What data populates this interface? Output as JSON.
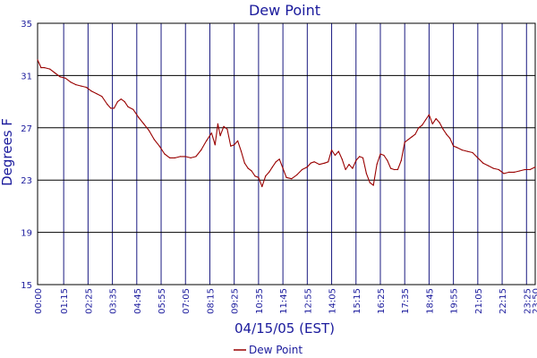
{
  "chart_data": {
    "type": "line",
    "title": "Dew Point",
    "xlabel": "04/15/05 (EST)",
    "ylabel": "Degrees F",
    "ylim": [
      15,
      35
    ],
    "yticks": [
      15,
      19,
      23,
      27,
      31,
      35
    ],
    "x_range": [
      "00:00",
      "23:50"
    ],
    "xticks": [
      "00:00",
      "01:15",
      "02:25",
      "03:35",
      "04:45",
      "05:55",
      "07:05",
      "08:15",
      "09:25",
      "10:35",
      "11:45",
      "12:55",
      "14:05",
      "15:15",
      "16:25",
      "17:35",
      "18:45",
      "19:55",
      "21:05",
      "22:15",
      "23:25",
      "23:50"
    ],
    "grid": true,
    "legend_position": "bottom",
    "colors": {
      "series": "#990000",
      "grid": "#1a1a80",
      "axis_text": "#1a1a9c",
      "horizontal_grid": "#000000"
    },
    "series": [
      {
        "name": "Dew Point",
        "points": [
          [
            "00:00",
            32.2
          ],
          [
            "00:10",
            31.6
          ],
          [
            "00:20",
            31.6
          ],
          [
            "00:35",
            31.5
          ],
          [
            "00:50",
            31.2
          ],
          [
            "01:05",
            30.9
          ],
          [
            "01:20",
            30.8
          ],
          [
            "01:35",
            30.5
          ],
          [
            "01:50",
            30.3
          ],
          [
            "02:05",
            30.2
          ],
          [
            "02:20",
            30.1
          ],
          [
            "02:35",
            29.8
          ],
          [
            "02:50",
            29.6
          ],
          [
            "03:05",
            29.4
          ],
          [
            "03:20",
            28.8
          ],
          [
            "03:30",
            28.5
          ],
          [
            "03:40",
            28.5
          ],
          [
            "03:50",
            29.0
          ],
          [
            "04:00",
            29.2
          ],
          [
            "04:10",
            29.0
          ],
          [
            "04:20",
            28.6
          ],
          [
            "04:35",
            28.4
          ],
          [
            "04:50",
            27.8
          ],
          [
            "05:05",
            27.3
          ],
          [
            "05:20",
            26.8
          ],
          [
            "05:35",
            26.1
          ],
          [
            "05:50",
            25.6
          ],
          [
            "06:05",
            25.0
          ],
          [
            "06:20",
            24.7
          ],
          [
            "06:35",
            24.7
          ],
          [
            "06:50",
            24.8
          ],
          [
            "07:05",
            24.8
          ],
          [
            "07:20",
            24.7
          ],
          [
            "07:35",
            24.8
          ],
          [
            "07:50",
            25.3
          ],
          [
            "08:05",
            26.0
          ],
          [
            "08:20",
            26.6
          ],
          [
            "08:30",
            25.7
          ],
          [
            "08:38",
            27.3
          ],
          [
            "08:45",
            26.4
          ],
          [
            "08:55",
            27.1
          ],
          [
            "09:05",
            26.9
          ],
          [
            "09:15",
            25.6
          ],
          [
            "09:25",
            25.7
          ],
          [
            "09:35",
            26.0
          ],
          [
            "09:45",
            25.2
          ],
          [
            "09:55",
            24.3
          ],
          [
            "10:05",
            23.9
          ],
          [
            "10:15",
            23.7
          ],
          [
            "10:25",
            23.3
          ],
          [
            "10:35",
            23.2
          ],
          [
            "10:45",
            22.5
          ],
          [
            "10:55",
            23.3
          ],
          [
            "11:05",
            23.6
          ],
          [
            "11:15",
            24.0
          ],
          [
            "11:25",
            24.4
          ],
          [
            "11:35",
            24.6
          ],
          [
            "11:45",
            23.9
          ],
          [
            "11:55",
            23.2
          ],
          [
            "12:10",
            23.1
          ],
          [
            "12:25",
            23.4
          ],
          [
            "12:40",
            23.8
          ],
          [
            "12:55",
            24.0
          ],
          [
            "13:05",
            24.3
          ],
          [
            "13:15",
            24.4
          ],
          [
            "13:30",
            24.2
          ],
          [
            "13:45",
            24.3
          ],
          [
            "13:55",
            24.4
          ],
          [
            "14:05",
            25.3
          ],
          [
            "14:15",
            24.9
          ],
          [
            "14:25",
            25.2
          ],
          [
            "14:35",
            24.6
          ],
          [
            "14:45",
            23.8
          ],
          [
            "14:55",
            24.2
          ],
          [
            "15:05",
            23.9
          ],
          [
            "15:15",
            24.5
          ],
          [
            "15:25",
            24.8
          ],
          [
            "15:35",
            24.7
          ],
          [
            "15:45",
            23.5
          ],
          [
            "15:55",
            22.8
          ],
          [
            "16:05",
            22.6
          ],
          [
            "16:15",
            24.2
          ],
          [
            "16:25",
            25.0
          ],
          [
            "16:35",
            24.9
          ],
          [
            "16:45",
            24.5
          ],
          [
            "16:55",
            23.9
          ],
          [
            "17:05",
            23.8
          ],
          [
            "17:15",
            23.8
          ],
          [
            "17:25",
            24.5
          ],
          [
            "17:35",
            25.9
          ],
          [
            "17:45",
            26.1
          ],
          [
            "17:55",
            26.3
          ],
          [
            "18:05",
            26.5
          ],
          [
            "18:15",
            27.0
          ],
          [
            "18:25",
            27.2
          ],
          [
            "18:35",
            27.6
          ],
          [
            "18:45",
            28.0
          ],
          [
            "18:55",
            27.3
          ],
          [
            "19:05",
            27.7
          ],
          [
            "19:15",
            27.4
          ],
          [
            "19:25",
            26.9
          ],
          [
            "19:35",
            26.5
          ],
          [
            "19:45",
            26.2
          ],
          [
            "19:55",
            25.6
          ],
          [
            "20:05",
            25.5
          ],
          [
            "20:20",
            25.3
          ],
          [
            "20:35",
            25.2
          ],
          [
            "20:50",
            25.1
          ],
          [
            "21:05",
            24.7
          ],
          [
            "21:20",
            24.3
          ],
          [
            "21:35",
            24.1
          ],
          [
            "21:50",
            23.9
          ],
          [
            "22:05",
            23.8
          ],
          [
            "22:20",
            23.5
          ],
          [
            "22:35",
            23.6
          ],
          [
            "22:50",
            23.6
          ],
          [
            "23:05",
            23.7
          ],
          [
            "23:20",
            23.8
          ],
          [
            "23:35",
            23.8
          ],
          [
            "23:50",
            24.0
          ]
        ]
      }
    ]
  }
}
